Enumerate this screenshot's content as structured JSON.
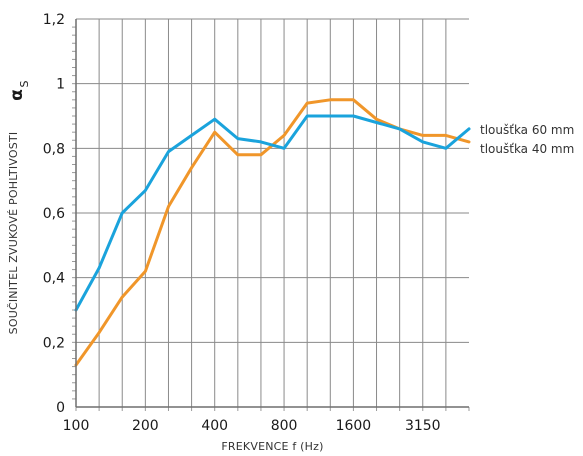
{
  "chart_data": {
    "type": "line",
    "x": [
      "100",
      "125",
      "160",
      "200",
      "250",
      "315",
      "400",
      "500",
      "630",
      "800",
      "1000",
      "1250",
      "1600",
      "2000",
      "2500",
      "3150",
      "4000",
      "5000"
    ],
    "tick_labels": [
      "100",
      "200",
      "400",
      "800",
      "1600",
      "3150"
    ],
    "xlabel": "FREKVENCE f (Hz)",
    "ylabel": "SOUČINITEL ZVUKOVÉ POHLTIVOSTI",
    "ylabel_symbol": "α",
    "ylabel_symbol_sub": "S",
    "ylim": [
      0,
      1.2
    ],
    "yticks": [
      {
        "value": 0,
        "label": "0"
      },
      {
        "value": 0.2,
        "label": "0,2"
      },
      {
        "value": 0.4,
        "label": "0,4"
      },
      {
        "value": 0.6,
        "label": "0,6"
      },
      {
        "value": 0.8,
        "label": "0,8"
      },
      {
        "value": 1.0,
        "label": "1"
      },
      {
        "value": 1.2,
        "label": "1,2"
      }
    ],
    "grid": true,
    "legend_position": "right",
    "series": [
      {
        "name": "tloušťka 60 mm",
        "color": "#1aa3dc",
        "values": [
          0.3,
          0.43,
          0.6,
          0.67,
          0.79,
          0.84,
          0.89,
          0.83,
          0.82,
          0.8,
          0.9,
          0.9,
          0.9,
          0.88,
          0.86,
          0.82,
          0.8,
          0.86
        ]
      },
      {
        "name": "tloušťka 40 mm",
        "color": "#f0962a",
        "values": [
          0.13,
          0.23,
          0.34,
          0.42,
          0.62,
          0.74,
          0.85,
          0.78,
          0.78,
          0.84,
          0.94,
          0.95,
          0.95,
          0.89,
          0.86,
          0.84,
          0.84,
          0.82
        ]
      }
    ]
  }
}
